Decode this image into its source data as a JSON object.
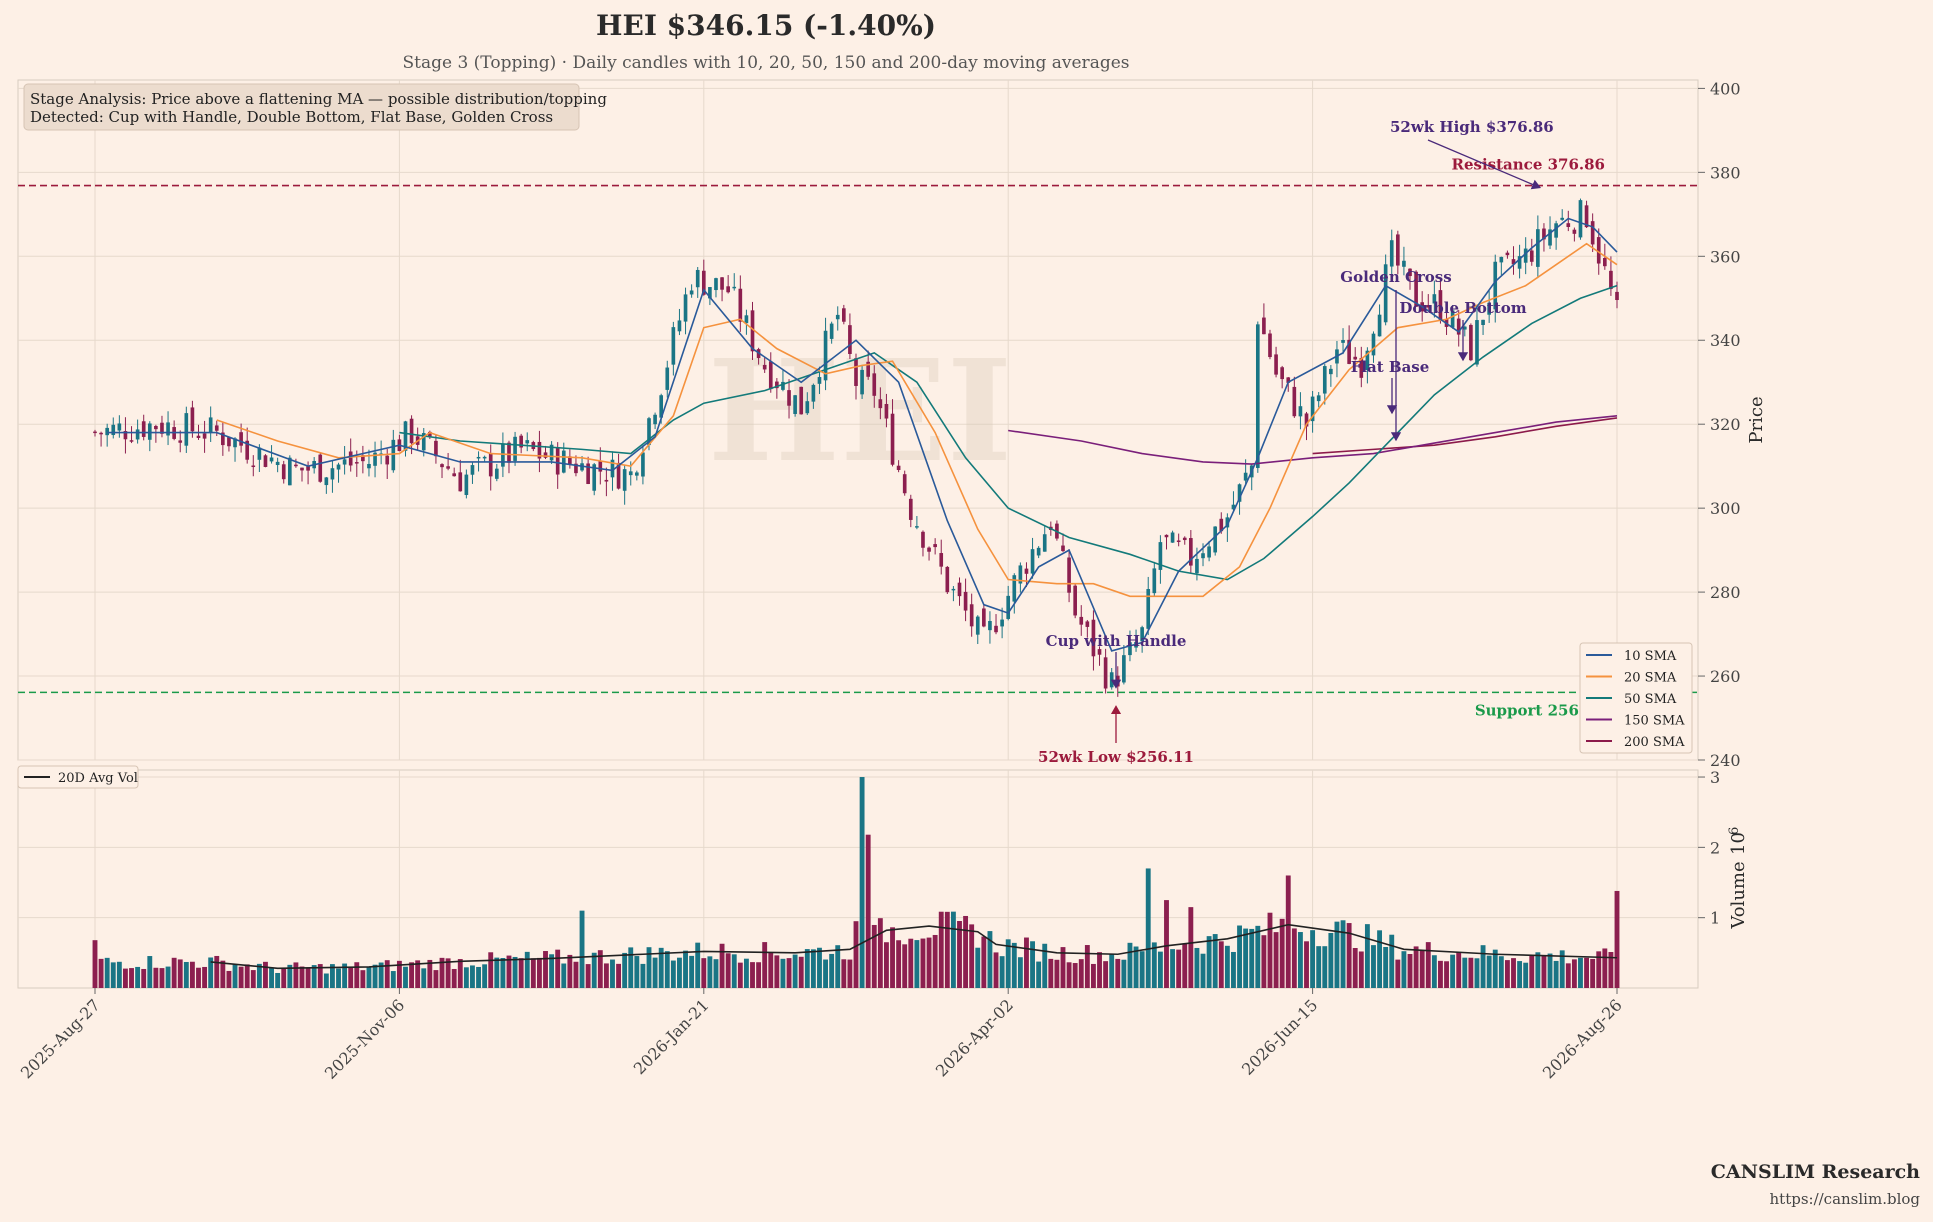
{
  "title": "HEI  $346.15  (-1.40%)",
  "subtitle": "Stage 3 (Topping)  ·  Daily candles with 10, 20, 50, 150 and 200-day moving averages",
  "watermark": "HEI",
  "info_box": {
    "line1": "Stage Analysis: Price above a flattening MA — possible distribution/topping",
    "line2": "Detected: Cup with Handle, Double Bottom, Flat Base, Golden Cross"
  },
  "brand": {
    "name": "CANSLIM Research",
    "url": "https://canslim.blog"
  },
  "colors": {
    "background": "#fdf0e6",
    "up": "#1a7585",
    "down": "#8c1f4f",
    "sma10": "#2a5a9a",
    "sma20": "#f5923e",
    "sma50": "#137a7a",
    "sma150": "#7a1f7a",
    "sma200": "#8c1a4a",
    "resistance": "#9c1a3c",
    "support": "#1a9a4a",
    "pattern": "#4a2a7a",
    "avgvol": "#222222"
  },
  "chart_data": {
    "type": "candlestick",
    "price_axis": {
      "label": "Price",
      "ylim": [
        240,
        402
      ],
      "ticks": [
        240,
        260,
        280,
        300,
        320,
        340,
        360,
        380,
        400
      ],
      "tick_labels": [
        "240",
        "260",
        "280",
        "300",
        "320",
        "340",
        "360",
        "380",
        "400"
      ]
    },
    "volume_axis": {
      "label": "Volume",
      "scale_label": "10^6",
      "ylim": [
        0,
        3.1
      ],
      "ticks": [
        1,
        2,
        3
      ],
      "tick_labels": [
        "1",
        "2",
        "3"
      ]
    },
    "x_axis": {
      "tick_labels": [
        "2025-Aug-27",
        "2025-Nov-06",
        "2026-Jan-21",
        "2026-Apr-02",
        "2026-Jun-15",
        "2026-Aug-26"
      ],
      "tick_positions": [
        0,
        50,
        100,
        150,
        200,
        250
      ]
    },
    "grid": true,
    "key_prices": [
      {
        "x": 0,
        "price": 318
      },
      {
        "x": 10,
        "price": 320
      },
      {
        "x": 20,
        "price": 318
      },
      {
        "x": 33,
        "price": 309
      },
      {
        "x": 45,
        "price": 311
      },
      {
        "x": 52,
        "price": 318
      },
      {
        "x": 60,
        "price": 307
      },
      {
        "x": 70,
        "price": 314
      },
      {
        "x": 80,
        "price": 310
      },
      {
        "x": 88,
        "price": 308
      },
      {
        "x": 93,
        "price": 330
      },
      {
        "x": 98,
        "price": 355
      },
      {
        "x": 104,
        "price": 352
      },
      {
        "x": 110,
        "price": 334
      },
      {
        "x": 116,
        "price": 324
      },
      {
        "x": 122,
        "price": 346
      },
      {
        "x": 125,
        "price": 330
      },
      {
        "x": 128,
        "price": 328
      },
      {
        "x": 134,
        "price": 300
      },
      {
        "x": 140,
        "price": 282
      },
      {
        "x": 146,
        "price": 268
      },
      {
        "x": 152,
        "price": 285
      },
      {
        "x": 157,
        "price": 297
      },
      {
        "x": 161,
        "price": 275
      },
      {
        "x": 167,
        "price": 258
      },
      {
        "x": 172,
        "price": 270
      },
      {
        "x": 175,
        "price": 292
      },
      {
        "x": 180,
        "price": 288
      },
      {
        "x": 186,
        "price": 298
      },
      {
        "x": 190,
        "price": 310
      },
      {
        "x": 191,
        "price": 346
      },
      {
        "x": 194,
        "price": 332
      },
      {
        "x": 199,
        "price": 320
      },
      {
        "x": 204,
        "price": 338
      },
      {
        "x": 208,
        "price": 335
      },
      {
        "x": 213,
        "price": 360
      },
      {
        "x": 217,
        "price": 350
      },
      {
        "x": 221,
        "price": 348
      },
      {
        "x": 226,
        "price": 338
      },
      {
        "x": 230,
        "price": 355
      },
      {
        "x": 235,
        "price": 360
      },
      {
        "x": 240,
        "price": 368
      },
      {
        "x": 245,
        "price": 370
      },
      {
        "x": 248,
        "price": 356
      },
      {
        "x": 250,
        "price": 346
      }
    ],
    "sma10_points": [
      {
        "x": 2,
        "y": 318
      },
      {
        "x": 20,
        "y": 318
      },
      {
        "x": 35,
        "y": 310
      },
      {
        "x": 50,
        "y": 315
      },
      {
        "x": 60,
        "y": 311
      },
      {
        "x": 75,
        "y": 311
      },
      {
        "x": 85,
        "y": 309
      },
      {
        "x": 92,
        "y": 317
      },
      {
        "x": 100,
        "y": 352
      },
      {
        "x": 108,
        "y": 338
      },
      {
        "x": 116,
        "y": 330
      },
      {
        "x": 125,
        "y": 340
      },
      {
        "x": 132,
        "y": 330
      },
      {
        "x": 140,
        "y": 297
      },
      {
        "x": 146,
        "y": 277
      },
      {
        "x": 150,
        "y": 275
      },
      {
        "x": 155,
        "y": 286
      },
      {
        "x": 160,
        "y": 290
      },
      {
        "x": 167,
        "y": 266
      },
      {
        "x": 172,
        "y": 268
      },
      {
        "x": 178,
        "y": 285
      },
      {
        "x": 186,
        "y": 296
      },
      {
        "x": 191,
        "y": 312
      },
      {
        "x": 196,
        "y": 330
      },
      {
        "x": 205,
        "y": 337
      },
      {
        "x": 212,
        "y": 353
      },
      {
        "x": 218,
        "y": 348
      },
      {
        "x": 224,
        "y": 342
      },
      {
        "x": 230,
        "y": 354
      },
      {
        "x": 236,
        "y": 362
      },
      {
        "x": 242,
        "y": 369
      },
      {
        "x": 246,
        "y": 367
      },
      {
        "x": 250,
        "y": 361
      }
    ],
    "sma20_points": [
      {
        "x": 20,
        "y": 321
      },
      {
        "x": 30,
        "y": 316
      },
      {
        "x": 40,
        "y": 312
      },
      {
        "x": 50,
        "y": 313
      },
      {
        "x": 55,
        "y": 318
      },
      {
        "x": 65,
        "y": 313
      },
      {
        "x": 80,
        "y": 312
      },
      {
        "x": 88,
        "y": 310
      },
      {
        "x": 95,
        "y": 322
      },
      {
        "x": 100,
        "y": 343
      },
      {
        "x": 106,
        "y": 345
      },
      {
        "x": 112,
        "y": 338
      },
      {
        "x": 120,
        "y": 332
      },
      {
        "x": 126,
        "y": 334
      },
      {
        "x": 131,
        "y": 335
      },
      {
        "x": 138,
        "y": 318
      },
      {
        "x": 145,
        "y": 295
      },
      {
        "x": 150,
        "y": 283
      },
      {
        "x": 158,
        "y": 282
      },
      {
        "x": 164,
        "y": 282
      },
      {
        "x": 170,
        "y": 279
      },
      {
        "x": 178,
        "y": 279
      },
      {
        "x": 182,
        "y": 279
      },
      {
        "x": 188,
        "y": 286
      },
      {
        "x": 193,
        "y": 300
      },
      {
        "x": 199,
        "y": 320
      },
      {
        "x": 206,
        "y": 333
      },
      {
        "x": 214,
        "y": 343
      },
      {
        "x": 222,
        "y": 345
      },
      {
        "x": 228,
        "y": 349
      },
      {
        "x": 235,
        "y": 353
      },
      {
        "x": 240,
        "y": 358
      },
      {
        "x": 245,
        "y": 363
      },
      {
        "x": 250,
        "y": 358
      }
    ],
    "sma50_points": [
      {
        "x": 50,
        "y": 318
      },
      {
        "x": 60,
        "y": 316
      },
      {
        "x": 70,
        "y": 315
      },
      {
        "x": 80,
        "y": 314
      },
      {
        "x": 88,
        "y": 313
      },
      {
        "x": 95,
        "y": 321
      },
      {
        "x": 100,
        "y": 325
      },
      {
        "x": 110,
        "y": 328
      },
      {
        "x": 120,
        "y": 333
      },
      {
        "x": 128,
        "y": 337
      },
      {
        "x": 135,
        "y": 330
      },
      {
        "x": 143,
        "y": 312
      },
      {
        "x": 150,
        "y": 300
      },
      {
        "x": 160,
        "y": 293
      },
      {
        "x": 170,
        "y": 289
      },
      {
        "x": 178,
        "y": 285
      },
      {
        "x": 186,
        "y": 283
      },
      {
        "x": 192,
        "y": 288
      },
      {
        "x": 200,
        "y": 298
      },
      {
        "x": 206,
        "y": 306
      },
      {
        "x": 212,
        "y": 315
      },
      {
        "x": 220,
        "y": 327
      },
      {
        "x": 228,
        "y": 336
      },
      {
        "x": 236,
        "y": 344
      },
      {
        "x": 244,
        "y": 350
      },
      {
        "x": 250,
        "y": 353
      }
    ],
    "sma150_points": [
      {
        "x": 150,
        "y": 318.5
      },
      {
        "x": 162,
        "y": 316
      },
      {
        "x": 172,
        "y": 313
      },
      {
        "x": 182,
        "y": 311
      },
      {
        "x": 190,
        "y": 310.5
      },
      {
        "x": 200,
        "y": 312
      },
      {
        "x": 210,
        "y": 313
      },
      {
        "x": 220,
        "y": 315.5
      },
      {
        "x": 230,
        "y": 318
      },
      {
        "x": 240,
        "y": 320.5
      },
      {
        "x": 250,
        "y": 322
      }
    ],
    "sma200_points": [
      {
        "x": 200,
        "y": 313
      },
      {
        "x": 210,
        "y": 314
      },
      {
        "x": 220,
        "y": 315
      },
      {
        "x": 230,
        "y": 317
      },
      {
        "x": 240,
        "y": 319.5
      },
      {
        "x": 250,
        "y": 321.5
      }
    ],
    "volume_spikes": [
      {
        "x": 0,
        "v": 0.68
      },
      {
        "x": 80,
        "v": 1.1
      },
      {
        "x": 125,
        "v": 0.95
      },
      {
        "x": 126,
        "v": 3.0
      },
      {
        "x": 127,
        "v": 2.18
      },
      {
        "x": 173,
        "v": 1.7
      },
      {
        "x": 176,
        "v": 1.25
      },
      {
        "x": 180,
        "v": 1.15
      },
      {
        "x": 196,
        "v": 1.6
      },
      {
        "x": 250,
        "v": 1.38
      }
    ],
    "avg_volume_points": [
      {
        "x": 19,
        "v": 0.37
      },
      {
        "x": 30,
        "v": 0.28
      },
      {
        "x": 45,
        "v": 0.3
      },
      {
        "x": 60,
        "v": 0.38
      },
      {
        "x": 75,
        "v": 0.42
      },
      {
        "x": 90,
        "v": 0.48
      },
      {
        "x": 100,
        "v": 0.52
      },
      {
        "x": 115,
        "v": 0.5
      },
      {
        "x": 124,
        "v": 0.55
      },
      {
        "x": 130,
        "v": 0.82
      },
      {
        "x": 137,
        "v": 0.88
      },
      {
        "x": 145,
        "v": 0.8
      },
      {
        "x": 148,
        "v": 0.62
      },
      {
        "x": 158,
        "v": 0.5
      },
      {
        "x": 168,
        "v": 0.48
      },
      {
        "x": 176,
        "v": 0.6
      },
      {
        "x": 186,
        "v": 0.7
      },
      {
        "x": 196,
        "v": 0.9
      },
      {
        "x": 206,
        "v": 0.78
      },
      {
        "x": 215,
        "v": 0.55
      },
      {
        "x": 230,
        "v": 0.48
      },
      {
        "x": 250,
        "v": 0.43
      }
    ],
    "resistance": {
      "value": 376.86,
      "label": "Resistance 376.86"
    },
    "support": {
      "value": 256.11,
      "label": "Support 256.11"
    },
    "annotations": [
      {
        "text": "52wk High $376.86",
        "x": 237,
        "y": 376.86
      },
      {
        "text": "52wk Low $256.11",
        "x": 168,
        "y": 256.11
      },
      {
        "text": "Cup with Handle",
        "x": 168,
        "y": 258
      },
      {
        "text": "Golden Cross",
        "x": 214,
        "y": 336
      },
      {
        "text": "Double Bottom",
        "x": 225,
        "y": 335
      },
      {
        "text": "Flat Base",
        "x": 213,
        "y": 323
      }
    ],
    "legend": [
      "10 SMA",
      "20 SMA",
      "50 SMA",
      "150 SMA",
      "200 SMA"
    ],
    "volume_legend": "20D Avg Vol"
  }
}
